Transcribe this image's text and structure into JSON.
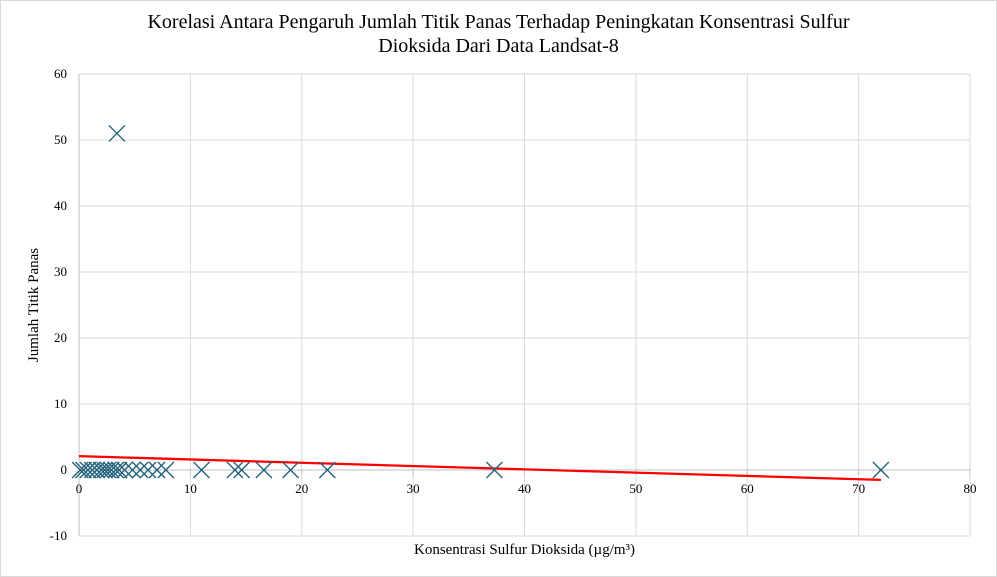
{
  "chart_data": {
    "type": "scatter",
    "title_lines": [
      "Korelasi Antara Pengaruh Jumlah Titik Panas Terhadap Peningkatan Konsentrasi Sulfur",
      "Dioksida Dari Data Landsat-8"
    ],
    "xlabel": "Konsentrasi Sulfur Dioksida (µg/m³)",
    "ylabel": "Jumlah Titik Panas",
    "xlim": [
      0,
      80
    ],
    "ylim": [
      -10,
      60
    ],
    "x_ticks": [
      0,
      10,
      20,
      30,
      40,
      50,
      60,
      70,
      80
    ],
    "y_ticks": [
      -10,
      0,
      10,
      20,
      30,
      40,
      50,
      60
    ],
    "grid": true,
    "legend": "none",
    "marker": "x",
    "marker_color": "#1f5f7a",
    "trendline_color": "#ff0000",
    "points": [
      {
        "x": 0.1,
        "y": 0
      },
      {
        "x": 0.4,
        "y": 0
      },
      {
        "x": 0.8,
        "y": 0
      },
      {
        "x": 1.2,
        "y": 0
      },
      {
        "x": 1.6,
        "y": 0
      },
      {
        "x": 2.0,
        "y": 0
      },
      {
        "x": 2.3,
        "y": 0
      },
      {
        "x": 2.6,
        "y": 0
      },
      {
        "x": 2.9,
        "y": 0
      },
      {
        "x": 3.3,
        "y": 0
      },
      {
        "x": 3.6,
        "y": 0
      },
      {
        "x": 4.1,
        "y": 0
      },
      {
        "x": 4.8,
        "y": 0
      },
      {
        "x": 5.5,
        "y": 0
      },
      {
        "x": 6.2,
        "y": 0
      },
      {
        "x": 7.0,
        "y": 0
      },
      {
        "x": 7.8,
        "y": 0
      },
      {
        "x": 11.0,
        "y": 0
      },
      {
        "x": 14.0,
        "y": 0
      },
      {
        "x": 14.6,
        "y": 0
      },
      {
        "x": 16.6,
        "y": 0
      },
      {
        "x": 19.0,
        "y": 0
      },
      {
        "x": 22.3,
        "y": 0
      },
      {
        "x": 37.3,
        "y": 0
      },
      {
        "x": 72.0,
        "y": 0
      },
      {
        "x": 3.4,
        "y": 51
      }
    ],
    "trendline": {
      "x": [
        0,
        72
      ],
      "y": [
        2.1,
        -1.5
      ]
    }
  }
}
